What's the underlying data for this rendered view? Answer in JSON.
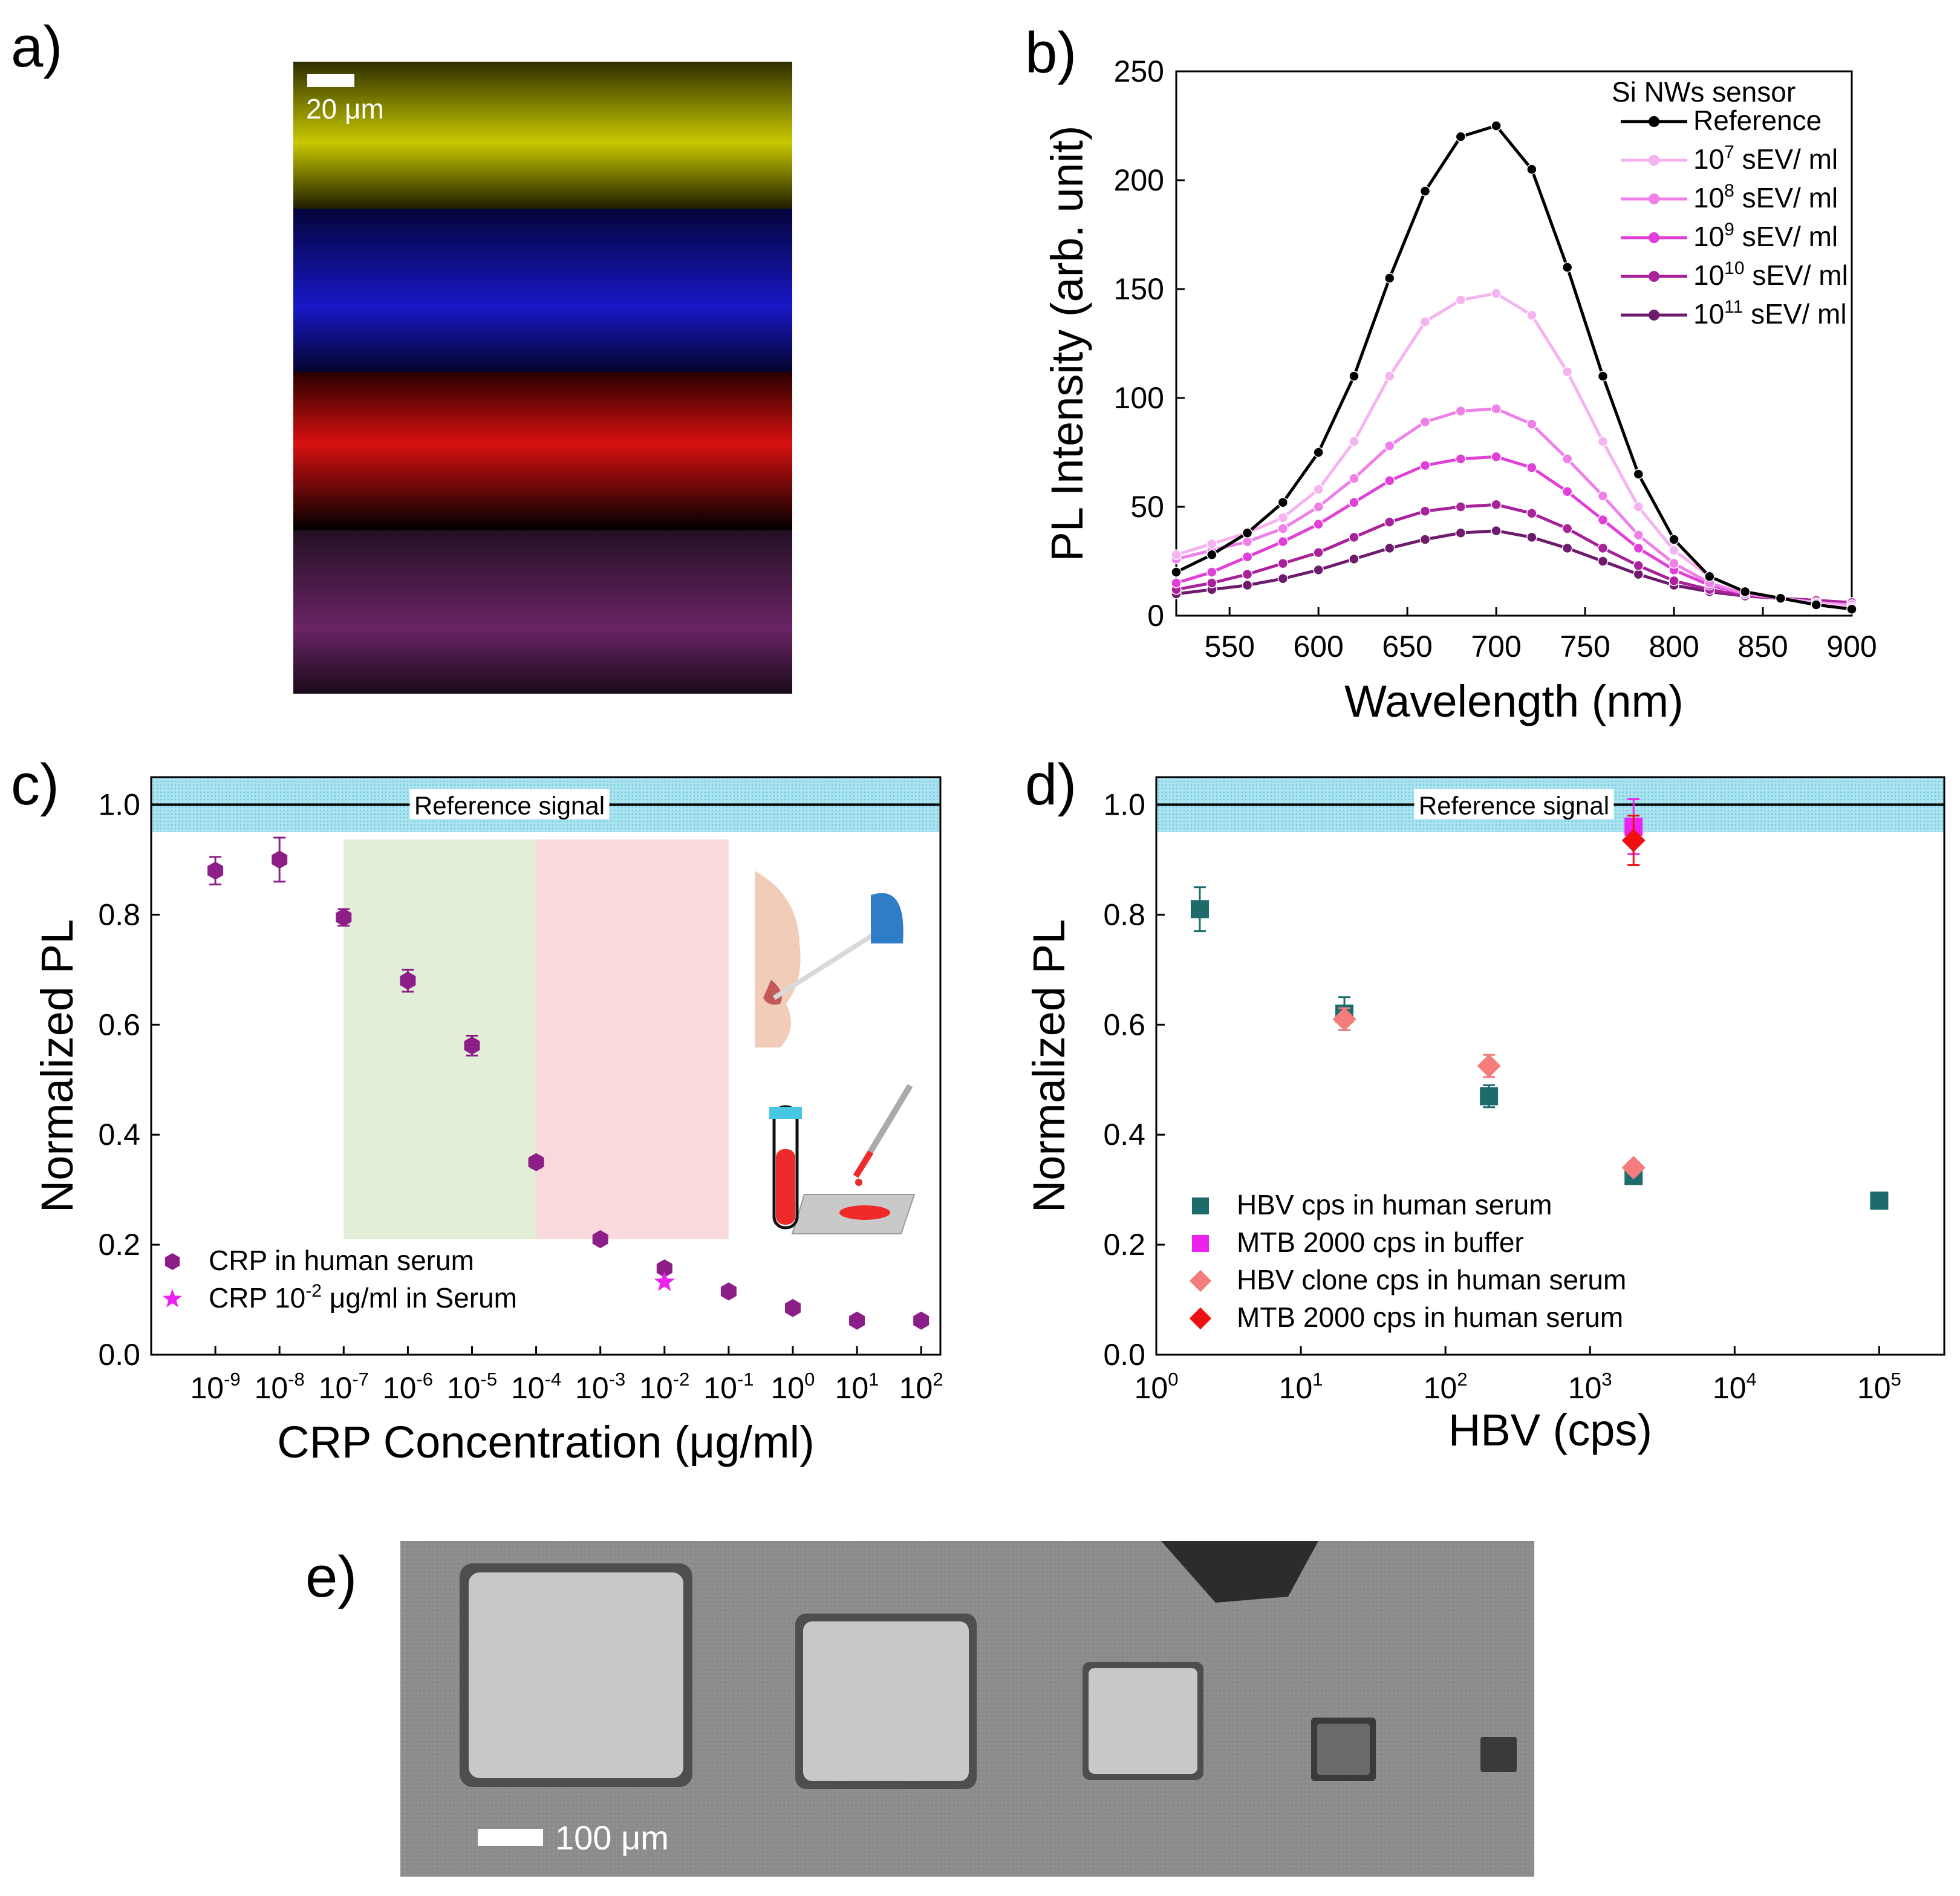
{
  "panel_labels": {
    "a": "a)",
    "b": "b)",
    "c": "c)",
    "d": "d)",
    "e": "e)"
  },
  "micrographs": {
    "a_scale_bar": "20 μm",
    "a_stripe_colors": [
      "#c8c800",
      "#1212c8",
      "#d01010",
      "#7a2a7a"
    ],
    "e_scale_bar": "100 μm"
  },
  "chart_data": [
    {
      "id": "b",
      "type": "line",
      "xlabel": "Wavelength (nm)",
      "ylabel": "PL Intensity (arb. unit)",
      "xlim": [
        520,
        900
      ],
      "ylim": [
        0,
        250
      ],
      "xticks": [
        550,
        600,
        650,
        700,
        750,
        800,
        850,
        900
      ],
      "yticks": [
        0,
        50,
        100,
        150,
        200,
        250
      ],
      "legend_title": "Si NWs sensor",
      "legend_position": "top-right",
      "x": [
        520,
        540,
        560,
        580,
        600,
        620,
        640,
        660,
        680,
        700,
        720,
        740,
        760,
        780,
        800,
        820,
        840,
        860,
        880,
        900
      ],
      "series": [
        {
          "name": "Reference",
          "base": "",
          "exp": "",
          "unit": "",
          "color": "#000000",
          "values": [
            20,
            28,
            38,
            52,
            75,
            110,
            155,
            195,
            220,
            225,
            205,
            160,
            110,
            65,
            35,
            18,
            11,
            8,
            5,
            3
          ]
        },
        {
          "name": "",
          "base": "10",
          "exp": "7",
          "unit": " sEV/ ml",
          "color": "#f5b3f0",
          "values": [
            28,
            33,
            38,
            45,
            58,
            80,
            110,
            135,
            145,
            148,
            138,
            112,
            80,
            50,
            30,
            18,
            11,
            8,
            6,
            4
          ]
        },
        {
          "name": "",
          "base": "10",
          "exp": "8",
          "unit": " sEV/ ml",
          "color": "#ef80e8",
          "values": [
            26,
            30,
            34,
            40,
            50,
            63,
            78,
            89,
            94,
            95,
            88,
            72,
            55,
            37,
            24,
            15,
            10,
            8,
            6,
            5
          ]
        },
        {
          "name": "",
          "base": "10",
          "exp": "9",
          "unit": " sEV/ ml",
          "color": "#e040d8",
          "values": [
            15,
            20,
            27,
            34,
            42,
            52,
            62,
            69,
            72,
            73,
            68,
            57,
            44,
            31,
            21,
            14,
            10,
            8,
            6,
            5
          ]
        },
        {
          "name": "",
          "base": "10",
          "exp": "10",
          "unit": " sEV/ ml",
          "color": "#a8229a",
          "values": [
            12,
            15,
            19,
            24,
            29,
            36,
            43,
            48,
            50,
            51,
            47,
            40,
            31,
            23,
            16,
            12,
            9,
            8,
            7,
            6
          ]
        },
        {
          "name": "",
          "base": "10",
          "exp": "11",
          "unit": " sEV/ ml",
          "color": "#6e1b6e",
          "values": [
            10,
            12,
            14,
            17,
            21,
            26,
            31,
            35,
            38,
            39,
            36,
            31,
            25,
            19,
            14,
            11,
            9,
            8,
            7,
            6
          ]
        }
      ]
    },
    {
      "id": "c",
      "type": "scatter",
      "xlabel": "CRP Concentration (μg/ml)",
      "ylabel": "Normalized PL",
      "x_scale": "log",
      "xlim": [
        -10,
        2.3
      ],
      "ylim": [
        0,
        1.05
      ],
      "xtick_exponents": [
        -9,
        -8,
        -7,
        -6,
        -5,
        -4,
        -3,
        -2,
        -1,
        0,
        1,
        2
      ],
      "yticks": [
        "0.0",
        "0.2",
        "0.4",
        "0.6",
        "0.8",
        "1.0"
      ],
      "reference_band": {
        "label": "Reference signal",
        "center": 1.0,
        "low": 0.95,
        "high": 1.05
      },
      "shaded_regions": [
        {
          "x_from": "1e-7",
          "x_to": "1e-4",
          "color": "#e3eed8"
        },
        {
          "x_from": "1e-4",
          "x_to": "1e-1",
          "color": "#f9d9dc"
        }
      ],
      "legend_position": "bottom-left",
      "series": [
        {
          "name": "CRP in human serum",
          "color": "#8b1f87",
          "marker": "hexagon",
          "x": [
            "1e-9",
            "1e-8",
            "1e-7",
            "1e-6",
            "1e-5",
            "1e-4",
            "1e-3",
            "1e-2",
            "1e-1",
            "1e0",
            "1e1",
            "1e2"
          ],
          "y": [
            0.88,
            0.9,
            0.795,
            0.68,
            0.562,
            0.35,
            0.21,
            0.157,
            0.115,
            0.085,
            0.062,
            0.062
          ],
          "err": [
            0.025,
            0.04,
            0.015,
            0.02,
            0.018,
            0.01,
            0.008,
            0.008,
            0.006,
            0.006,
            0.005,
            0.005
          ]
        },
        {
          "name_prefix": "CRP 10",
          "name_exp": "-2",
          "name_suffix": " μg/ml in Serum",
          "color": "#ee22ee",
          "marker": "star",
          "x": [
            "1e-2"
          ],
          "y": [
            0.132
          ],
          "err": [
            0
          ]
        }
      ]
    },
    {
      "id": "d",
      "type": "scatter",
      "xlabel": "HBV (cps)",
      "ylabel": "Normalized PL",
      "x_scale": "log",
      "xlim": [
        0,
        5.45
      ],
      "ylim": [
        0,
        1.05
      ],
      "xtick_exponents": [
        0,
        1,
        2,
        3,
        4,
        5
      ],
      "yticks": [
        "0.0",
        "0.2",
        "0.4",
        "0.6",
        "0.8",
        "1.0"
      ],
      "reference_band": {
        "label": "Reference signal",
        "center": 1.0,
        "low": 0.95,
        "high": 1.05
      },
      "legend_position": "bottom-left",
      "series": [
        {
          "name": "HBV cps in human serum",
          "color": "#1d6b6b",
          "marker": "square",
          "x": [
            2,
            20,
            200,
            2000,
            100000
          ],
          "y": [
            0.81,
            0.62,
            0.47,
            0.325,
            0.28
          ],
          "err": [
            0.04,
            0.03,
            0.02,
            0.01,
            0.01
          ]
        },
        {
          "name": "MTB 2000 cps in buffer",
          "color": "#ee22ee",
          "marker": "square",
          "x": [
            2000
          ],
          "y": [
            0.96
          ],
          "err": [
            0.05
          ]
        },
        {
          "name": "HBV clone cps in human serum",
          "color": "#f47c7c",
          "marker": "diamond",
          "x": [
            20,
            200,
            2000
          ],
          "y": [
            0.61,
            0.525,
            0.34
          ],
          "err": [
            0.02,
            0.02,
            0.01
          ]
        },
        {
          "name": "MTB 2000 cps in human serum",
          "color": "#ee1111",
          "marker": "diamond",
          "x": [
            2000
          ],
          "y": [
            0.935
          ],
          "err": [
            0.045
          ]
        }
      ]
    }
  ]
}
